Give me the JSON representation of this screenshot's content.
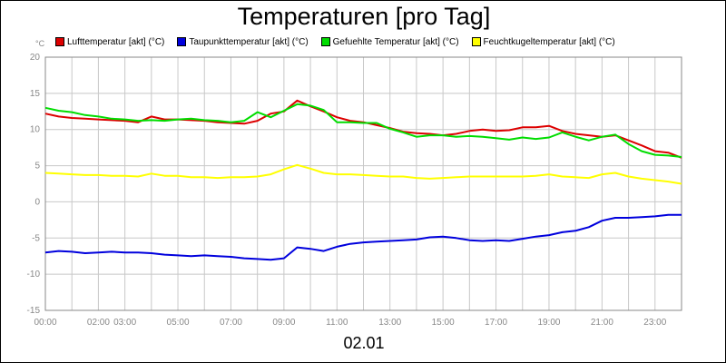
{
  "chart_data": {
    "type": "line",
    "title": "Temperaturen [pro Tag]",
    "y_unit": "°C",
    "x_caption": "02.01",
    "grid": true,
    "legend_position": "top",
    "xlim": [
      "00:00",
      "24:00"
    ],
    "ylim": [
      -15,
      20
    ],
    "y_ticks": [
      "20",
      "15",
      "10",
      "5",
      "0",
      "-5",
      "-10",
      "-15"
    ],
    "x_tick_labels": [
      "00:00",
      "02:00",
      "03:00",
      "05:00",
      "07:00",
      "09:00",
      "11:00",
      "13:00",
      "15:00",
      "17:00",
      "19:00",
      "21:00",
      "23:00"
    ],
    "x": [
      0.0,
      0.5,
      1.0,
      1.5,
      2.0,
      2.5,
      3.0,
      3.5,
      4.0,
      4.5,
      5.0,
      5.5,
      6.0,
      6.5,
      7.0,
      7.5,
      8.0,
      8.5,
      9.0,
      9.5,
      10.0,
      10.5,
      11.0,
      11.5,
      12.0,
      12.5,
      13.0,
      13.5,
      14.0,
      14.5,
      15.0,
      15.5,
      16.0,
      16.5,
      17.0,
      17.5,
      18.0,
      18.5,
      19.0,
      19.5,
      20.0,
      20.5,
      21.0,
      21.5,
      22.0,
      22.5,
      23.0,
      23.5,
      24.0
    ],
    "series": [
      {
        "name": "Lufttemperatur [akt] (°C)",
        "color": "#dd0000",
        "values": [
          12.2,
          11.8,
          11.6,
          11.5,
          11.4,
          11.3,
          11.2,
          11.0,
          11.8,
          11.4,
          11.4,
          11.3,
          11.2,
          11.0,
          10.9,
          10.8,
          11.2,
          12.2,
          12.5,
          14.0,
          13.2,
          12.5,
          11.7,
          11.2,
          11.0,
          10.6,
          10.2,
          9.7,
          9.5,
          9.4,
          9.2,
          9.4,
          9.8,
          10.0,
          9.8,
          9.9,
          10.3,
          10.3,
          10.5,
          9.8,
          9.4,
          9.2,
          9.0,
          9.2,
          8.5,
          7.8,
          7.0,
          6.8,
          6.1
        ]
      },
      {
        "name": "Taupunkttemperatur [akt] (°C)",
        "color": "#0000dd",
        "values": [
          -7.0,
          -6.8,
          -6.9,
          -7.1,
          -7.0,
          -6.9,
          -7.0,
          -7.0,
          -7.1,
          -7.3,
          -7.4,
          -7.5,
          -7.4,
          -7.5,
          -7.6,
          -7.8,
          -7.9,
          -8.0,
          -7.8,
          -6.3,
          -6.5,
          -6.8,
          -6.2,
          -5.8,
          -5.6,
          -5.5,
          -5.4,
          -5.3,
          -5.2,
          -4.9,
          -4.8,
          -5.0,
          -5.3,
          -5.4,
          -5.3,
          -5.4,
          -5.1,
          -4.8,
          -4.6,
          -4.2,
          -4.0,
          -3.5,
          -2.6,
          -2.2,
          -2.2,
          -2.1,
          -2.0,
          -1.8,
          -1.8
        ]
      },
      {
        "name": "Gefuehlte Temperatur [akt] (°C)",
        "color": "#00dd00",
        "values": [
          13.0,
          12.6,
          12.4,
          12.0,
          11.8,
          11.5,
          11.4,
          11.2,
          11.3,
          11.2,
          11.4,
          11.5,
          11.3,
          11.2,
          11.0,
          11.2,
          12.4,
          11.7,
          12.6,
          13.5,
          13.3,
          12.7,
          11.0,
          11.0,
          10.9,
          10.9,
          10.1,
          9.6,
          9.0,
          9.2,
          9.2,
          9.0,
          9.1,
          9.0,
          8.8,
          8.6,
          8.9,
          8.7,
          8.9,
          9.6,
          9.0,
          8.5,
          9.0,
          9.3,
          8.0,
          7.0,
          6.5,
          6.4,
          6.2
        ]
      },
      {
        "name": "Feuchtkugeltemperatur [akt] (°C)",
        "color": "#ffff00",
        "values": [
          4.0,
          3.9,
          3.8,
          3.7,
          3.7,
          3.6,
          3.6,
          3.5,
          3.9,
          3.6,
          3.6,
          3.4,
          3.4,
          3.3,
          3.4,
          3.4,
          3.5,
          3.8,
          4.5,
          5.1,
          4.6,
          4.0,
          3.8,
          3.8,
          3.7,
          3.6,
          3.5,
          3.5,
          3.3,
          3.2,
          3.3,
          3.4,
          3.5,
          3.5,
          3.5,
          3.5,
          3.5,
          3.6,
          3.8,
          3.5,
          3.4,
          3.3,
          3.8,
          4.0,
          3.5,
          3.2,
          3.0,
          2.8,
          2.5
        ]
      }
    ]
  }
}
